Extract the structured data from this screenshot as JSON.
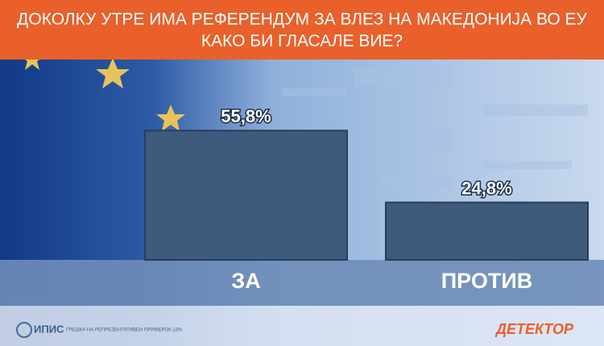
{
  "chart_data": {
    "type": "bar",
    "title": [
      "ДОКОЛКУ УТРЕ ИМА РЕФЕРЕНДУМ ЗА ВЛЕЗ НА МАКЕДОНИЈА ВО ЕУ",
      "КАКО БИ ГЛАСАЛЕ ВИЕ?"
    ],
    "categories": [
      "ЗА",
      "ПРОТИВ"
    ],
    "values": [
      55.8,
      24.8
    ],
    "value_labels": [
      "55,8%",
      "24,8%"
    ],
    "color": "#3e5a7d",
    "source": "ИПИС",
    "note": "ГРЕШКА НА РЕПРЕЗЕНТАТИВЕН ПРИМЕРОК ±3%",
    "brand": "ДЕТЕКТОР"
  }
}
